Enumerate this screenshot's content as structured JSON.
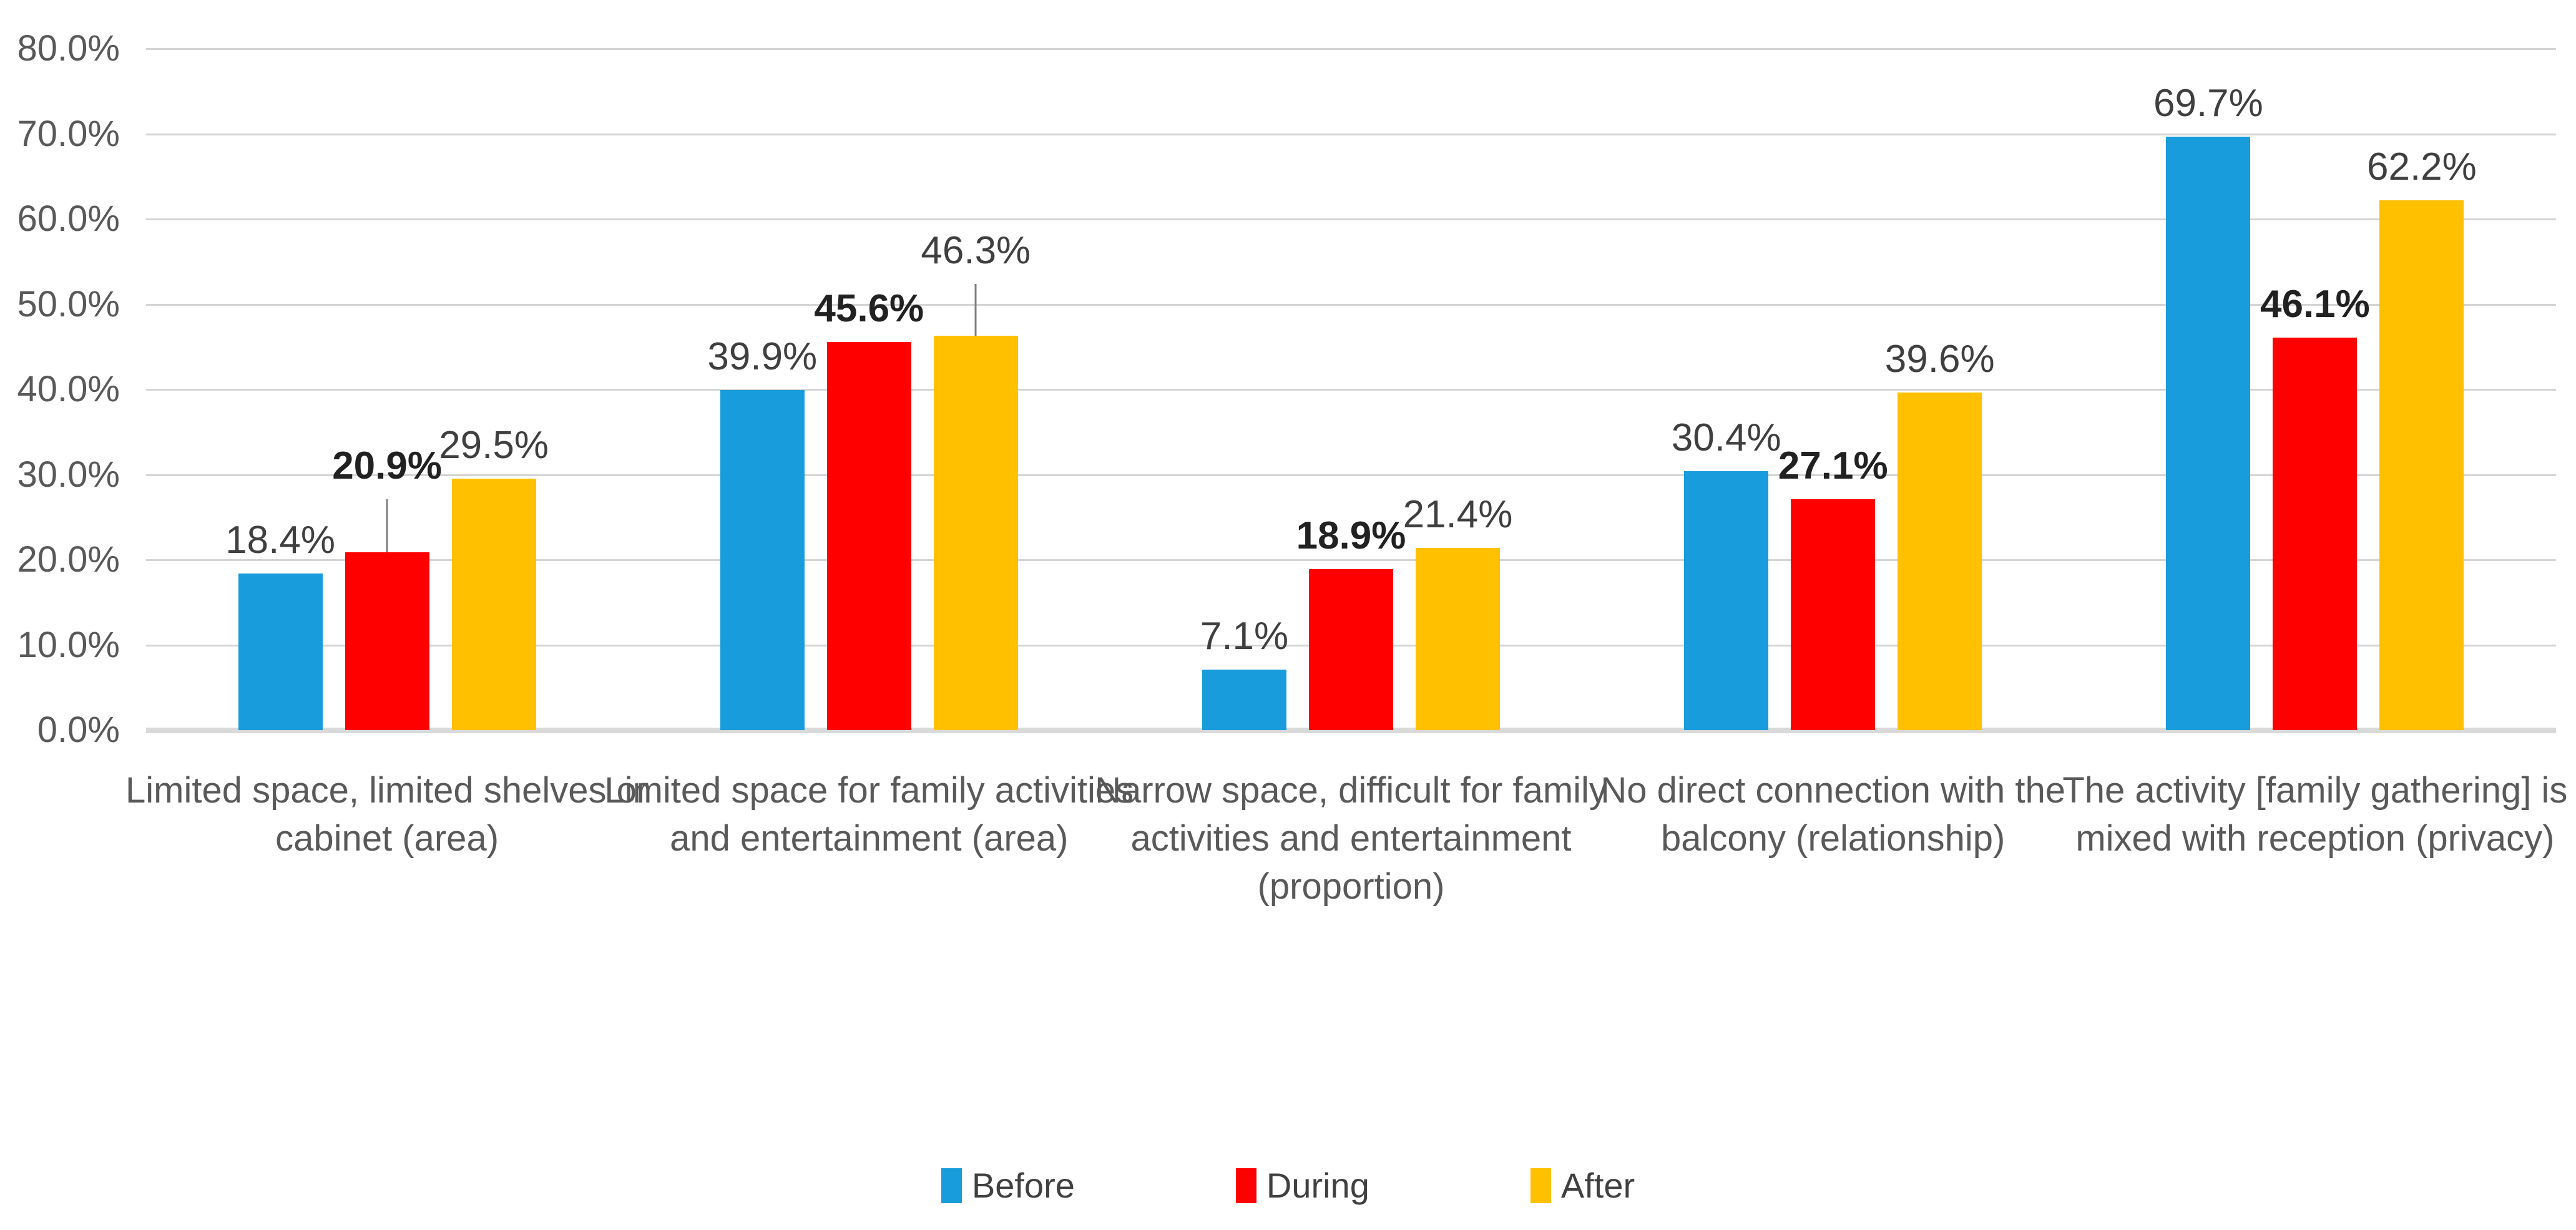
{
  "chart_data": {
    "type": "bar",
    "title": "",
    "xlabel": "",
    "ylabel": "",
    "categories": [
      "Limited space, limited shelves or\ncabinet (area)",
      "Limited space for family activities\nand entertainment (area)",
      "Narrow space, difficult for family\nactivities and entertainment\n(proportion)",
      "No direct connection with the\nbalcony (relationship)",
      "The activity [family gathering] is\nmixed with reception (privacy)"
    ],
    "series": [
      {
        "name": "Before",
        "color": "#189CDB",
        "values": [
          18.4,
          39.9,
          7.1,
          30.4,
          69.7
        ],
        "labels": [
          "18.4%",
          "39.9%",
          "7.1%",
          "30.4%",
          "69.7%"
        ],
        "bold_labels": false
      },
      {
        "name": "During",
        "color": "#FF0000",
        "values": [
          20.9,
          45.6,
          18.9,
          27.1,
          46.1
        ],
        "labels": [
          "20.9%",
          "45.6%",
          "18.9%",
          "27.1%",
          "46.1%"
        ],
        "bold_labels": true
      },
      {
        "name": "After",
        "color": "#FFC000",
        "values": [
          29.5,
          46.3,
          21.4,
          39.6,
          62.2
        ],
        "labels": [
          "29.5%",
          "46.3%",
          "21.4%",
          "39.6%",
          "62.2%"
        ],
        "bold_labels": false
      }
    ],
    "ylim": [
      0,
      80
    ],
    "yticks": [
      {
        "value": 80,
        "label": "80.0%"
      },
      {
        "value": 70,
        "label": "70.0%"
      },
      {
        "value": 60,
        "label": "60.0%"
      },
      {
        "value": 50,
        "label": "50.0%"
      },
      {
        "value": 40,
        "label": "40.0%"
      },
      {
        "value": 30,
        "label": "30.0%"
      },
      {
        "value": 20,
        "label": "20.0%"
      },
      {
        "value": 10,
        "label": "10.0%"
      },
      {
        "value": 0,
        "label": "0.0%"
      }
    ],
    "grid": true,
    "legend_position": "bottom",
    "label_callouts": [
      {
        "series": "During",
        "category_index": 0,
        "line_length_pct": 6.2
      },
      {
        "series": "After",
        "category_index": 1,
        "line_length_pct": 6.1
      }
    ]
  },
  "colors": {
    "gridline": "#d4d4d4",
    "axis_baseline": "#d9d9d9",
    "axis_text": "#595959",
    "data_label": "#3f3f3f",
    "data_label_bold": "#212121",
    "leader_line": "#7f7f7f",
    "legend_text": "#404040",
    "background": "#ffffff"
  },
  "legend": {
    "items": [
      "Before",
      "During",
      "After"
    ]
  }
}
